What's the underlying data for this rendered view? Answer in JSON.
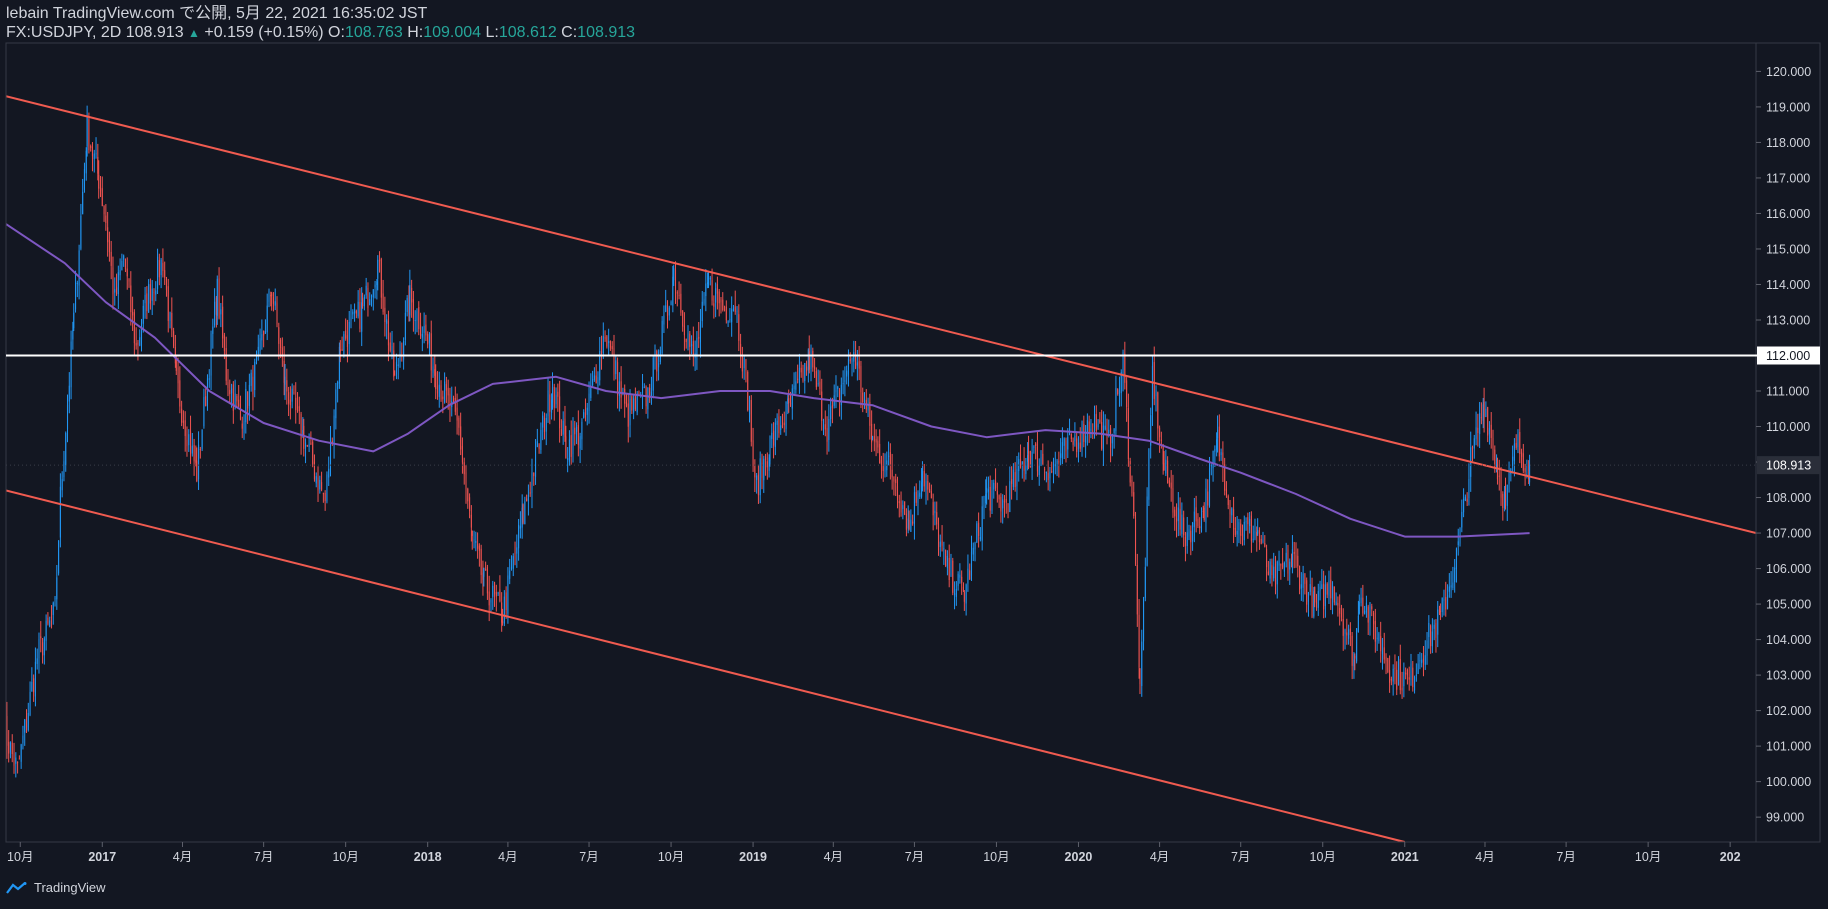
{
  "header": {
    "line1": "lebain TradingView.com で公開, 5月 22, 2021 16:35:02 JST",
    "symbol": "FX:USDJPY, 2D",
    "last": "108.913",
    "change_arrow": "▲",
    "change": "+0.159 (+0.15%)",
    "o_label": "O:",
    "o": "108.763",
    "h_label": "H:",
    "h": "109.004",
    "l_label": "L:",
    "l": "108.612",
    "c_label": "C:",
    "c": "108.913"
  },
  "footer": {
    "brand": "TradingView"
  },
  "colors": {
    "background": "#131722",
    "up": "#2196f3",
    "down": "#ef5350",
    "ma": "#7e57c2",
    "channel": "#f05b50",
    "level": "#ffffff",
    "text": "#d1d4dc"
  },
  "chart_data": {
    "type": "candlestick",
    "symbol": "FX:USDJPY",
    "interval": "2D",
    "ylim": [
      98.3,
      120.8
    ],
    "y_ticks": [
      "120.000",
      "119.000",
      "118.000",
      "117.000",
      "116.000",
      "115.000",
      "114.000",
      "113.000",
      "112.000",
      "111.000",
      "110.000",
      "109.000",
      "108.000",
      "107.000",
      "106.000",
      "105.000",
      "104.000",
      "103.000",
      "102.000",
      "101.000",
      "100.000",
      "99.000"
    ],
    "x_ticks": [
      {
        "label": "10月",
        "date": "2016-10-01"
      },
      {
        "label": "2017",
        "date": "2017-01-01",
        "major": true
      },
      {
        "label": "4月",
        "date": "2017-04-01"
      },
      {
        "label": "7月",
        "date": "2017-07-01"
      },
      {
        "label": "10月",
        "date": "2017-10-01"
      },
      {
        "label": "2018",
        "date": "2018-01-01",
        "major": true
      },
      {
        "label": "4月",
        "date": "2018-04-01"
      },
      {
        "label": "7月",
        "date": "2018-07-01"
      },
      {
        "label": "10月",
        "date": "2018-10-01"
      },
      {
        "label": "2019",
        "date": "2019-01-01",
        "major": true
      },
      {
        "label": "4月",
        "date": "2019-04-01"
      },
      {
        "label": "7月",
        "date": "2019-07-01"
      },
      {
        "label": "10月",
        "date": "2019-10-01"
      },
      {
        "label": "2020",
        "date": "2020-01-01",
        "major": true
      },
      {
        "label": "4月",
        "date": "2020-04-01"
      },
      {
        "label": "7月",
        "date": "2020-07-01"
      },
      {
        "label": "10月",
        "date": "2020-10-01"
      },
      {
        "label": "2021",
        "date": "2021-01-01",
        "major": true
      },
      {
        "label": "4月",
        "date": "2021-04-01"
      },
      {
        "label": "7月",
        "date": "2021-07-01"
      },
      {
        "label": "10月",
        "date": "2021-10-01"
      },
      {
        "label": "202",
        "date": "2022-01-01",
        "major": true
      }
    ],
    "x_range": [
      "2016-09-15",
      "2022-01-30"
    ],
    "price_path": [
      [
        "2016-09-12",
        101.5
      ],
      [
        "2016-09-28",
        100.3
      ],
      [
        "2016-10-20",
        103.5
      ],
      [
        "2016-11-09",
        104.8
      ],
      [
        "2016-11-15",
        108.0
      ],
      [
        "2016-11-30",
        113.0
      ],
      [
        "2016-12-15",
        118.4
      ],
      [
        "2016-12-28",
        117.0
      ],
      [
        "2017-01-05",
        115.8
      ],
      [
        "2017-01-15",
        113.5
      ],
      [
        "2017-01-25",
        114.8
      ],
      [
        "2017-02-08",
        112.2
      ],
      [
        "2017-02-20",
        113.6
      ],
      [
        "2017-03-10",
        114.7
      ],
      [
        "2017-03-25",
        111.2
      ],
      [
        "2017-04-17",
        108.7
      ],
      [
        "2017-05-10",
        113.8
      ],
      [
        "2017-05-20",
        111.5
      ],
      [
        "2017-06-05",
        110.2
      ],
      [
        "2017-06-25",
        111.8
      ],
      [
        "2017-07-10",
        113.9
      ],
      [
        "2017-07-25",
        111.2
      ],
      [
        "2017-08-15",
        109.7
      ],
      [
        "2017-09-08",
        107.9
      ],
      [
        "2017-09-25",
        112.3
      ],
      [
        "2017-10-20",
        113.3
      ],
      [
        "2017-11-06",
        114.6
      ],
      [
        "2017-11-25",
        111.3
      ],
      [
        "2017-12-12",
        113.6
      ],
      [
        "2017-12-28",
        112.7
      ],
      [
        "2018-01-10",
        111.5
      ],
      [
        "2018-02-05",
        109.9
      ],
      [
        "2018-02-20",
        106.8
      ],
      [
        "2018-03-05",
        105.6
      ],
      [
        "2018-03-26",
        104.7
      ],
      [
        "2018-04-18",
        107.5
      ],
      [
        "2018-05-21",
        111.2
      ],
      [
        "2018-06-05",
        109.4
      ],
      [
        "2018-06-25",
        110.0
      ],
      [
        "2018-07-19",
        112.7
      ],
      [
        "2018-08-12",
        110.3
      ],
      [
        "2018-09-05",
        110.9
      ],
      [
        "2018-09-25",
        113.0
      ],
      [
        "2018-10-04",
        114.4
      ],
      [
        "2018-10-26",
        111.8
      ],
      [
        "2018-11-12",
        114.0
      ],
      [
        "2018-11-30",
        113.3
      ],
      [
        "2018-12-12",
        113.5
      ],
      [
        "2018-12-28",
        110.5
      ],
      [
        "2019-01-03",
        108.2
      ],
      [
        "2019-01-20",
        109.5
      ],
      [
        "2019-02-10",
        110.5
      ],
      [
        "2019-03-05",
        111.9
      ],
      [
        "2019-03-25",
        110.0
      ],
      [
        "2019-04-24",
        112.1
      ],
      [
        "2019-05-15",
        109.6
      ],
      [
        "2019-06-10",
        108.5
      ],
      [
        "2019-06-25",
        107.2
      ],
      [
        "2019-07-10",
        108.8
      ],
      [
        "2019-08-05",
        106.0
      ],
      [
        "2019-08-26",
        105.3
      ],
      [
        "2019-09-20",
        108.1
      ],
      [
        "2019-10-10",
        107.8
      ],
      [
        "2019-11-06",
        109.3
      ],
      [
        "2019-12-02",
        108.8
      ],
      [
        "2019-12-20",
        109.4
      ],
      [
        "2020-01-17",
        110.2
      ],
      [
        "2020-02-04",
        109.5
      ],
      [
        "2020-02-20",
        111.8
      ],
      [
        "2020-03-05",
        106.5
      ],
      [
        "2020-03-10",
        102.5
      ],
      [
        "2020-03-24",
        111.5
      ],
      [
        "2020-04-06",
        108.8
      ],
      [
        "2020-04-28",
        106.9
      ],
      [
        "2020-05-21",
        107.7
      ],
      [
        "2020-06-05",
        109.6
      ],
      [
        "2020-06-25",
        107.2
      ],
      [
        "2020-07-20",
        107.0
      ],
      [
        "2020-08-05",
        105.6
      ],
      [
        "2020-08-28",
        106.3
      ],
      [
        "2020-09-22",
        104.9
      ],
      [
        "2020-10-12",
        105.6
      ],
      [
        "2020-11-06",
        103.4
      ],
      [
        "2020-11-11",
        105.4
      ],
      [
        "2020-12-17",
        103.1
      ],
      [
        "2021-01-06",
        102.8
      ],
      [
        "2021-01-20",
        103.7
      ],
      [
        "2021-02-10",
        104.6
      ],
      [
        "2021-02-28",
        106.3
      ],
      [
        "2021-03-16",
        109.0
      ],
      [
        "2021-03-31",
        110.7
      ],
      [
        "2021-04-15",
        108.8
      ],
      [
        "2021-04-24",
        107.8
      ],
      [
        "2021-05-06",
        109.5
      ],
      [
        "2021-05-21",
        108.9
      ]
    ],
    "moving_average": [
      [
        "2016-09-15",
        115.7
      ],
      [
        "2016-11-20",
        114.6
      ],
      [
        "2017-01-05",
        113.5
      ],
      [
        "2017-03-01",
        112.5
      ],
      [
        "2017-05-01",
        111.0
      ],
      [
        "2017-07-01",
        110.1
      ],
      [
        "2017-09-01",
        109.6
      ],
      [
        "2017-11-01",
        109.3
      ],
      [
        "2017-12-10",
        109.8
      ],
      [
        "2018-01-25",
        110.6
      ],
      [
        "2018-03-15",
        111.2
      ],
      [
        "2018-05-25",
        111.4
      ],
      [
        "2018-07-20",
        111.0
      ],
      [
        "2018-09-20",
        110.8
      ],
      [
        "2018-11-25",
        111.0
      ],
      [
        "2019-01-20",
        111.0
      ],
      [
        "2019-03-10",
        110.8
      ],
      [
        "2019-05-15",
        110.6
      ],
      [
        "2019-07-20",
        110.0
      ],
      [
        "2019-09-20",
        109.7
      ],
      [
        "2019-11-25",
        109.9
      ],
      [
        "2020-01-25",
        109.8
      ],
      [
        "2020-03-20",
        109.6
      ],
      [
        "2020-05-15",
        109.1
      ],
      [
        "2020-07-01",
        108.7
      ],
      [
        "2020-09-01",
        108.1
      ],
      [
        "2020-11-01",
        107.4
      ],
      [
        "2021-01-01",
        106.9
      ],
      [
        "2021-03-01",
        106.9
      ],
      [
        "2021-05-21",
        107.0
      ]
    ],
    "channel_upper": [
      [
        "2016-09-15",
        119.3
      ],
      [
        "2022-01-30",
        107.0
      ]
    ],
    "channel_lower": [
      [
        "2016-09-15",
        108.2
      ],
      [
        "2021-01-01",
        98.3
      ]
    ],
    "horizontal_level": 112.0,
    "last_price": 108.913
  }
}
